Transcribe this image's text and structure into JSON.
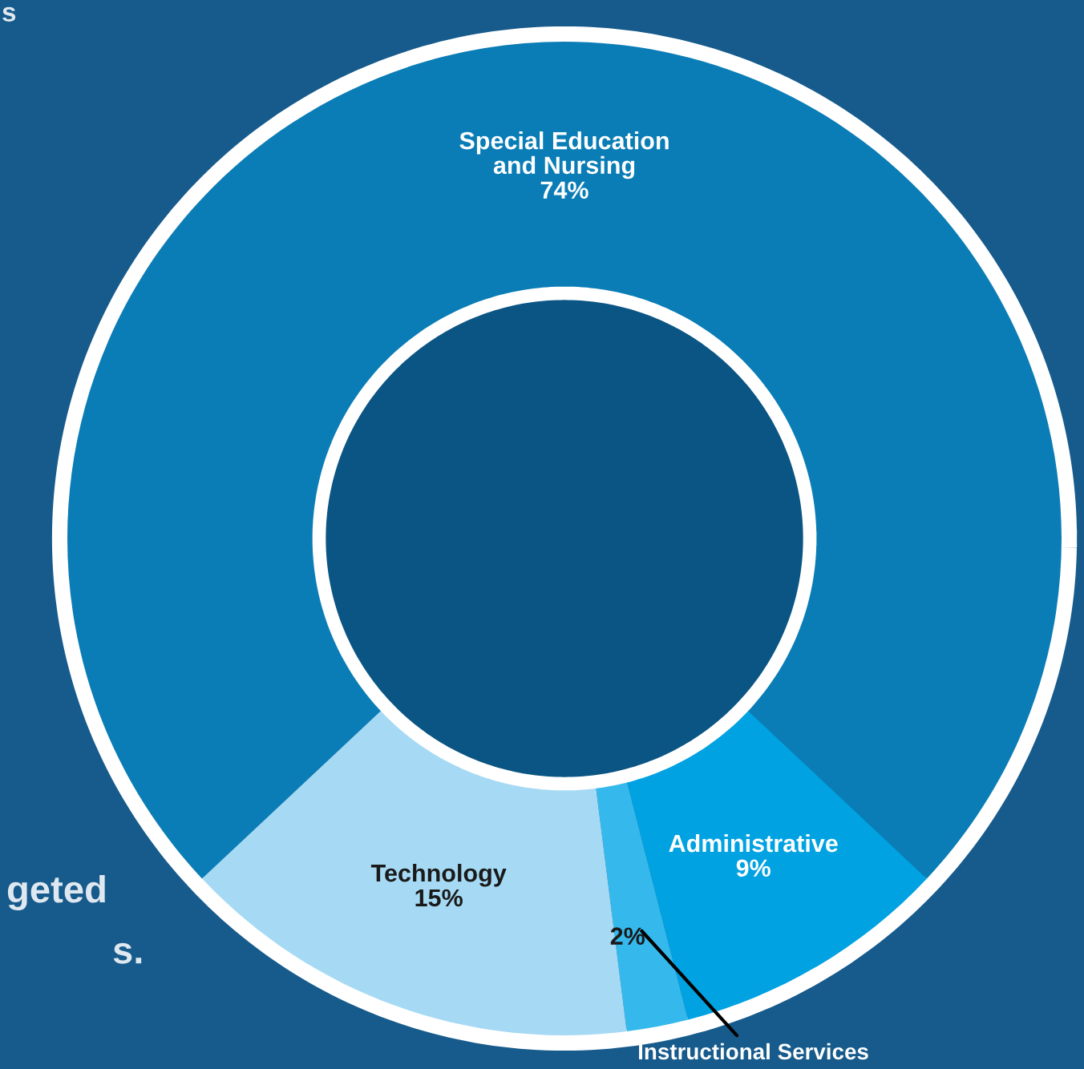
{
  "chart_data": {
    "type": "donut",
    "categories": [
      "Special Education\nand Nursing",
      "Administrative",
      "Instructional Services",
      "Technology"
    ],
    "values": [
      74,
      9,
      2,
      15
    ],
    "value_labels": [
      "74%",
      "9%",
      "2%",
      "15%"
    ],
    "colors": [
      "#0a7db6",
      "#00a2e2",
      "#35b9ec",
      "#a6daf4"
    ],
    "annotations": [
      "s",
      "geted",
      "s."
    ]
  }
}
